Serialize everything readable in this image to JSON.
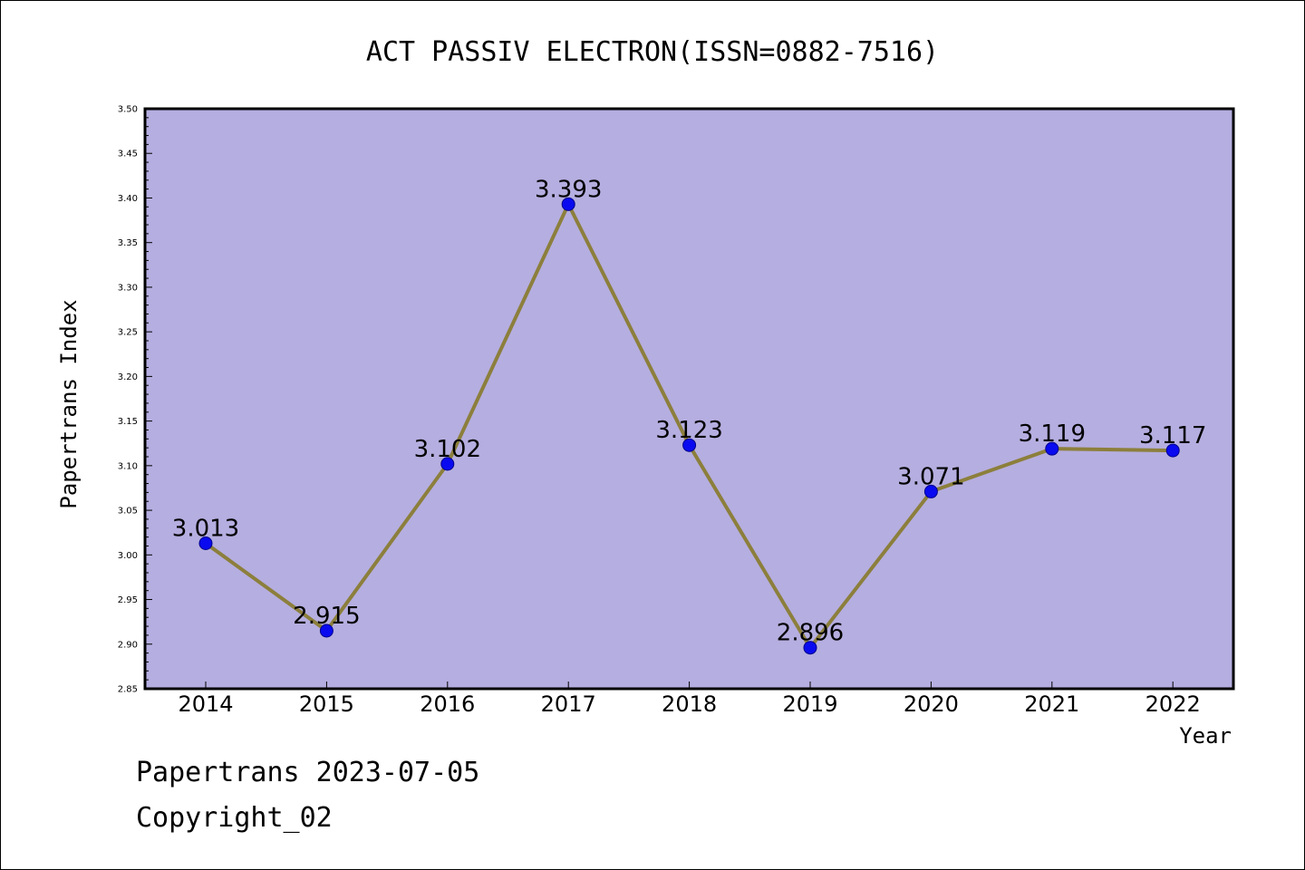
{
  "chart_data": {
    "type": "line",
    "title": "ACT PASSIV ELECTRON(ISSN=0882-7516)",
    "xlabel": "Year",
    "ylabel": "Papertrans Index",
    "categories": [
      "2014",
      "2015",
      "2016",
      "2017",
      "2018",
      "2019",
      "2020",
      "2021",
      "2022"
    ],
    "series": [
      {
        "values": [
          3.013,
          2.915,
          3.102,
          3.393,
          3.123,
          2.896,
          3.071,
          3.119,
          3.117
        ],
        "value_labels": [
          "3.013",
          "2.915",
          "3.102",
          "3.393",
          "3.123",
          "2.896",
          "3.071",
          "3.119",
          "3.117"
        ]
      }
    ],
    "ylim": [
      2.85,
      3.5
    ],
    "yticks": [
      "2.85",
      "2.90",
      "2.95",
      "3.00",
      "3.05",
      "3.10",
      "3.15",
      "3.20",
      "3.25",
      "3.30",
      "3.35",
      "3.40",
      "3.45",
      "3.50"
    ],
    "grid": false,
    "colors": {
      "plot_background": "#b5aee0",
      "line": "#8c7f3c",
      "marker": "#0a0af0",
      "marker_edge": "#00008b"
    }
  },
  "footer": {
    "line1": "Papertrans 2023-07-05",
    "line2": "Copyright_02"
  }
}
